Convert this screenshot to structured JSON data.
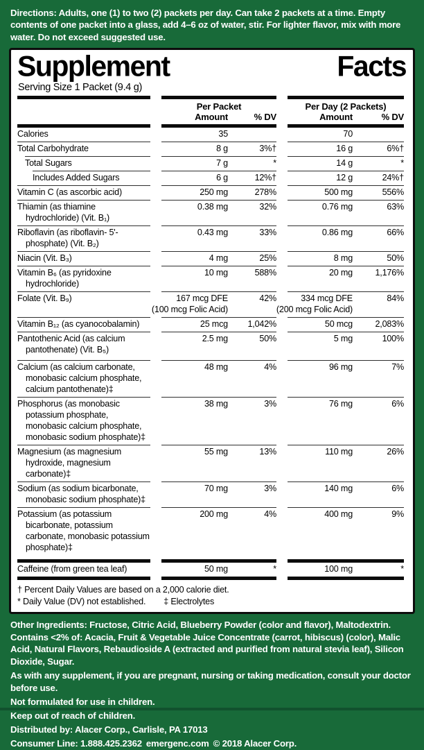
{
  "colors": {
    "background_green": "#186a39",
    "panel_border": "#0d0d0d",
    "panel_bg": "#ffffff"
  },
  "directions": {
    "lead": "Directions:",
    "text": " Adults, one (1) to two (2) packets per day. Can take 2 packets at a time. Empty contents of one packet into a glass, add 4–6 oz of water, stir. For lighter flavor, mix with more water. Do not exceed suggested use."
  },
  "panel": {
    "title_word1": "Supplement",
    "title_word2": "Facts",
    "serving": "Serving Size 1 Packet (9.4 g)",
    "columns": {
      "packet_header": "Per Packet",
      "day_header": "Per Day (2 Packets)",
      "amount": "Amount",
      "dv": "% DV"
    },
    "rows": [
      {
        "name": "Calories",
        "pa": "35",
        "pd": "",
        "da": "70",
        "dd": "",
        "rule": false
      },
      {
        "name": "Total Carbohydrate",
        "pa": "8 g",
        "pd": "3%†",
        "da": "16 g",
        "dd": "6%†"
      },
      {
        "name": "Total Sugars",
        "pa": "7 g",
        "pd": "*",
        "da": "14 g",
        "dd": "*",
        "ind": 1
      },
      {
        "name": "Includes Added Sugars",
        "pa": "6 g",
        "pd": "12%†",
        "da": "12 g",
        "dd": "24%†",
        "ind": 2
      },
      {
        "name": "Vitamin C (as ascorbic acid)",
        "pa": "250 mg",
        "pd": "278%",
        "da": "500 mg",
        "dd": "556%"
      },
      {
        "name": "Thiamin (as thiamine hydrochloride) (Vit. B₁)",
        "pa": "0.38 mg",
        "pd": "32%",
        "da": "0.76 mg",
        "dd": "63%"
      },
      {
        "name": "Riboflavin (as riboflavin- 5'-phosphate) (Vit. B₂)",
        "pa": "0.43 mg",
        "pd": "33%",
        "da": "0.86 mg",
        "dd": "66%"
      },
      {
        "name": "Niacin (Vit. B₃)",
        "pa": "4 mg",
        "pd": "25%",
        "da": "8 mg",
        "dd": "50%"
      },
      {
        "name": "Vitamin B₆ (as pyridoxine hydrochloride)",
        "pa": "10 mg",
        "pd": "588%",
        "da": "20 mg",
        "dd": "1,176%"
      },
      {
        "name": "Folate (Vit. B₉)",
        "pa": "167 mcg DFE",
        "pa_note": "(100 mcg Folic Acid)",
        "pd": "42%",
        "da": "334 mcg DFE",
        "da_note": "(200 mcg Folic Acid)",
        "dd": "84%"
      },
      {
        "name": "Vitamin B₁₂ (as cyanocobalamin)",
        "pa": "25 mcg",
        "pd": "1,042%",
        "da": "50 mcg",
        "dd": "2,083%"
      },
      {
        "name": "Pantothenic Acid (as calcium pantothenate) (Vit. B₅)",
        "pa": "2.5 mg",
        "pd": "50%",
        "da": "5 mg",
        "dd": "100%"
      },
      {
        "name": "Calcium (as calcium carbonate, monobasic calcium phosphate, calcium pantothenate)‡",
        "pa": "48 mg",
        "pd": "4%",
        "da": "96 mg",
        "dd": "7%",
        "space": true
      },
      {
        "name": "Phosphorus (as monobasic potassium phosphate, monobasic calcium phosphate, monobasic sodium phosphate)‡",
        "pa": "38 mg",
        "pd": "3%",
        "da": "76 mg",
        "dd": "6%"
      },
      {
        "name": "Magnesium (as magnesium hydroxide, magnesium carbonate)‡",
        "pa": "55 mg",
        "pd": "13%",
        "da": "110 mg",
        "dd": "26%"
      },
      {
        "name": "Sodium (as sodium bicarbonate, monobasic sodium phosphate)‡",
        "pa": "70 mg",
        "pd": "3%",
        "da": "140 mg",
        "dd": "6%"
      },
      {
        "name": "Potassium (as potassium bicarbonate, potassium carbonate, monobasic potassium phosphate)‡",
        "pa": "200 mg",
        "pd": "4%",
        "da": "400 mg",
        "dd": "9%"
      },
      {
        "name": "Caffeine (from green tea leaf)",
        "pa": "50 mg",
        "pd": "*",
        "da": "100 mg",
        "dd": "*",
        "rule": false,
        "bar_above": true,
        "bar_below": true
      }
    ],
    "footnotes": [
      "† Percent Daily Values are based on a 2,000 calorie diet.",
      "* Daily Value (DV) not established.",
      "‡ Electrolytes"
    ]
  },
  "bottom": {
    "other_ingredients_lead": "Other Ingredients:",
    "other_ingredients_text": " Fructose, Citric Acid, Blueberry Powder (color and flavor), Maltodextrin. ",
    "contains_lead": "Contains <2% of:",
    "contains_text": " Acacia, Fruit & Vegetable Juice Concentrate (carrot, hibiscus) (color), Malic Acid, Natural Flavors, Rebaudioside A (extracted and purified from natural stevia leaf), Silicon Dioxide, Sugar.",
    "supplement_note": "As with any supplement, if you are pregnant, nursing or taking medication, consult your doctor before use.",
    "children_note": "Not formulated for use in children.",
    "keep_out": "Keep out of reach of children.",
    "distributed": "Distributed by: Alacer Corp., Carlisle, PA 17013",
    "consumer_pre": "Consumer Line: 1.888.425.2362",
    "consumer_site": "emergenc.com",
    "consumer_post": "© 2018 Alacer Corp."
  }
}
